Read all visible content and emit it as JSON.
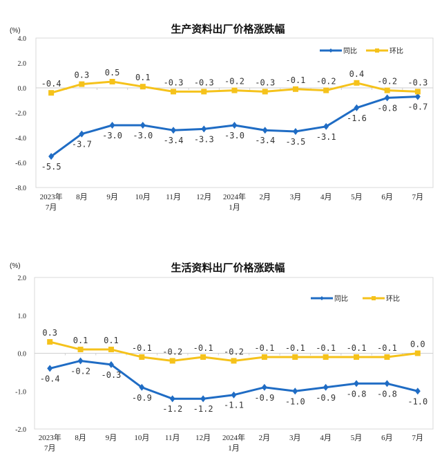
{
  "chart_data": [
    {
      "type": "line",
      "title": "生产资料出厂价格涨跌幅",
      "unit": "(%)",
      "categories": [
        [
          "2023年",
          "7月"
        ],
        [
          "8月"
        ],
        [
          "9月"
        ],
        [
          "10月"
        ],
        [
          "11月"
        ],
        [
          "12月"
        ],
        [
          "2024年",
          "1月"
        ],
        [
          "2月"
        ],
        [
          "3月"
        ],
        [
          "4月"
        ],
        [
          "5月"
        ],
        [
          "6月"
        ],
        [
          "7月"
        ]
      ],
      "ylim": [
        -8.0,
        4.0
      ],
      "yticks": [
        4.0,
        2.0,
        0.0,
        -2.0,
        -4.0,
        -6.0,
        -8.0
      ],
      "ytick_labels": [
        "4.0",
        "2.0",
        "0.0",
        "-2.0",
        "-4.0",
        "-6.0",
        "-8.0"
      ],
      "legend_position": "top-right",
      "series": [
        {
          "name": "同比",
          "color": "#1f6cc4",
          "marker": "diamond",
          "values": [
            -5.5,
            -3.7,
            -3.0,
            -3.0,
            -3.4,
            -3.3,
            -3.0,
            -3.4,
            -3.5,
            -3.1,
            -1.6,
            -0.8,
            -0.7
          ],
          "labels": [
            "-5.5",
            "-3.7",
            "-3.0",
            "-3.0",
            "-3.4",
            "-3.3",
            "-3.0",
            "-3.4",
            "-3.5",
            "-3.1",
            "-1.6",
            "-0.8",
            "-0.7"
          ]
        },
        {
          "name": "环比",
          "color": "#f5c21b",
          "marker": "square",
          "values": [
            -0.4,
            0.3,
            0.5,
            0.1,
            -0.3,
            -0.3,
            -0.2,
            -0.3,
            -0.1,
            -0.2,
            0.4,
            -0.2,
            -0.3
          ],
          "labels": [
            "-0.4",
            "0.3",
            "0.5",
            "0.1",
            "-0.3",
            "-0.3",
            "-0.2",
            "-0.3",
            "-0.1",
            "-0.2",
            "0.4",
            "-0.2",
            "-0.3"
          ]
        }
      ]
    },
    {
      "type": "line",
      "title": "生活资料出厂价格涨跌幅",
      "unit": "(%)",
      "categories": [
        [
          "2023年",
          "7月"
        ],
        [
          "8月"
        ],
        [
          "9月"
        ],
        [
          "10月"
        ],
        [
          "11月"
        ],
        [
          "12月"
        ],
        [
          "2024年",
          "1月"
        ],
        [
          "2月"
        ],
        [
          "3月"
        ],
        [
          "4月"
        ],
        [
          "5月"
        ],
        [
          "6月"
        ],
        [
          "7月"
        ]
      ],
      "ylim": [
        -2.0,
        2.0
      ],
      "yticks": [
        2.0,
        1.0,
        0.0,
        -1.0,
        -2.0
      ],
      "ytick_labels": [
        "2.0",
        "1.0",
        "0.0",
        "-1.0",
        "-2.0"
      ],
      "legend_position": "top-right",
      "series": [
        {
          "name": "同比",
          "color": "#1f6cc4",
          "marker": "diamond",
          "values": [
            -0.4,
            -0.2,
            -0.3,
            -0.9,
            -1.2,
            -1.2,
            -1.1,
            -0.9,
            -1.0,
            -0.9,
            -0.8,
            -0.8,
            -1.0
          ],
          "labels": [
            "-0.4",
            "-0.2",
            "-0.3",
            "-0.9",
            "-1.2",
            "-1.2",
            "-1.1",
            "-0.9",
            "-1.0",
            "-0.9",
            "-0.8",
            "-0.8",
            "-1.0"
          ]
        },
        {
          "name": "环比",
          "color": "#f5c21b",
          "marker": "square",
          "values": [
            0.3,
            0.1,
            0.1,
            -0.1,
            -0.2,
            -0.1,
            -0.2,
            -0.1,
            -0.1,
            -0.1,
            -0.1,
            -0.1,
            0.0
          ],
          "labels": [
            "0.3",
            "0.1",
            "0.1",
            "-0.1",
            "-0.2",
            "-0.1",
            "-0.2",
            "-0.1",
            "-0.1",
            "-0.1",
            "-0.1",
            "-0.1",
            "0.0"
          ]
        }
      ]
    }
  ]
}
